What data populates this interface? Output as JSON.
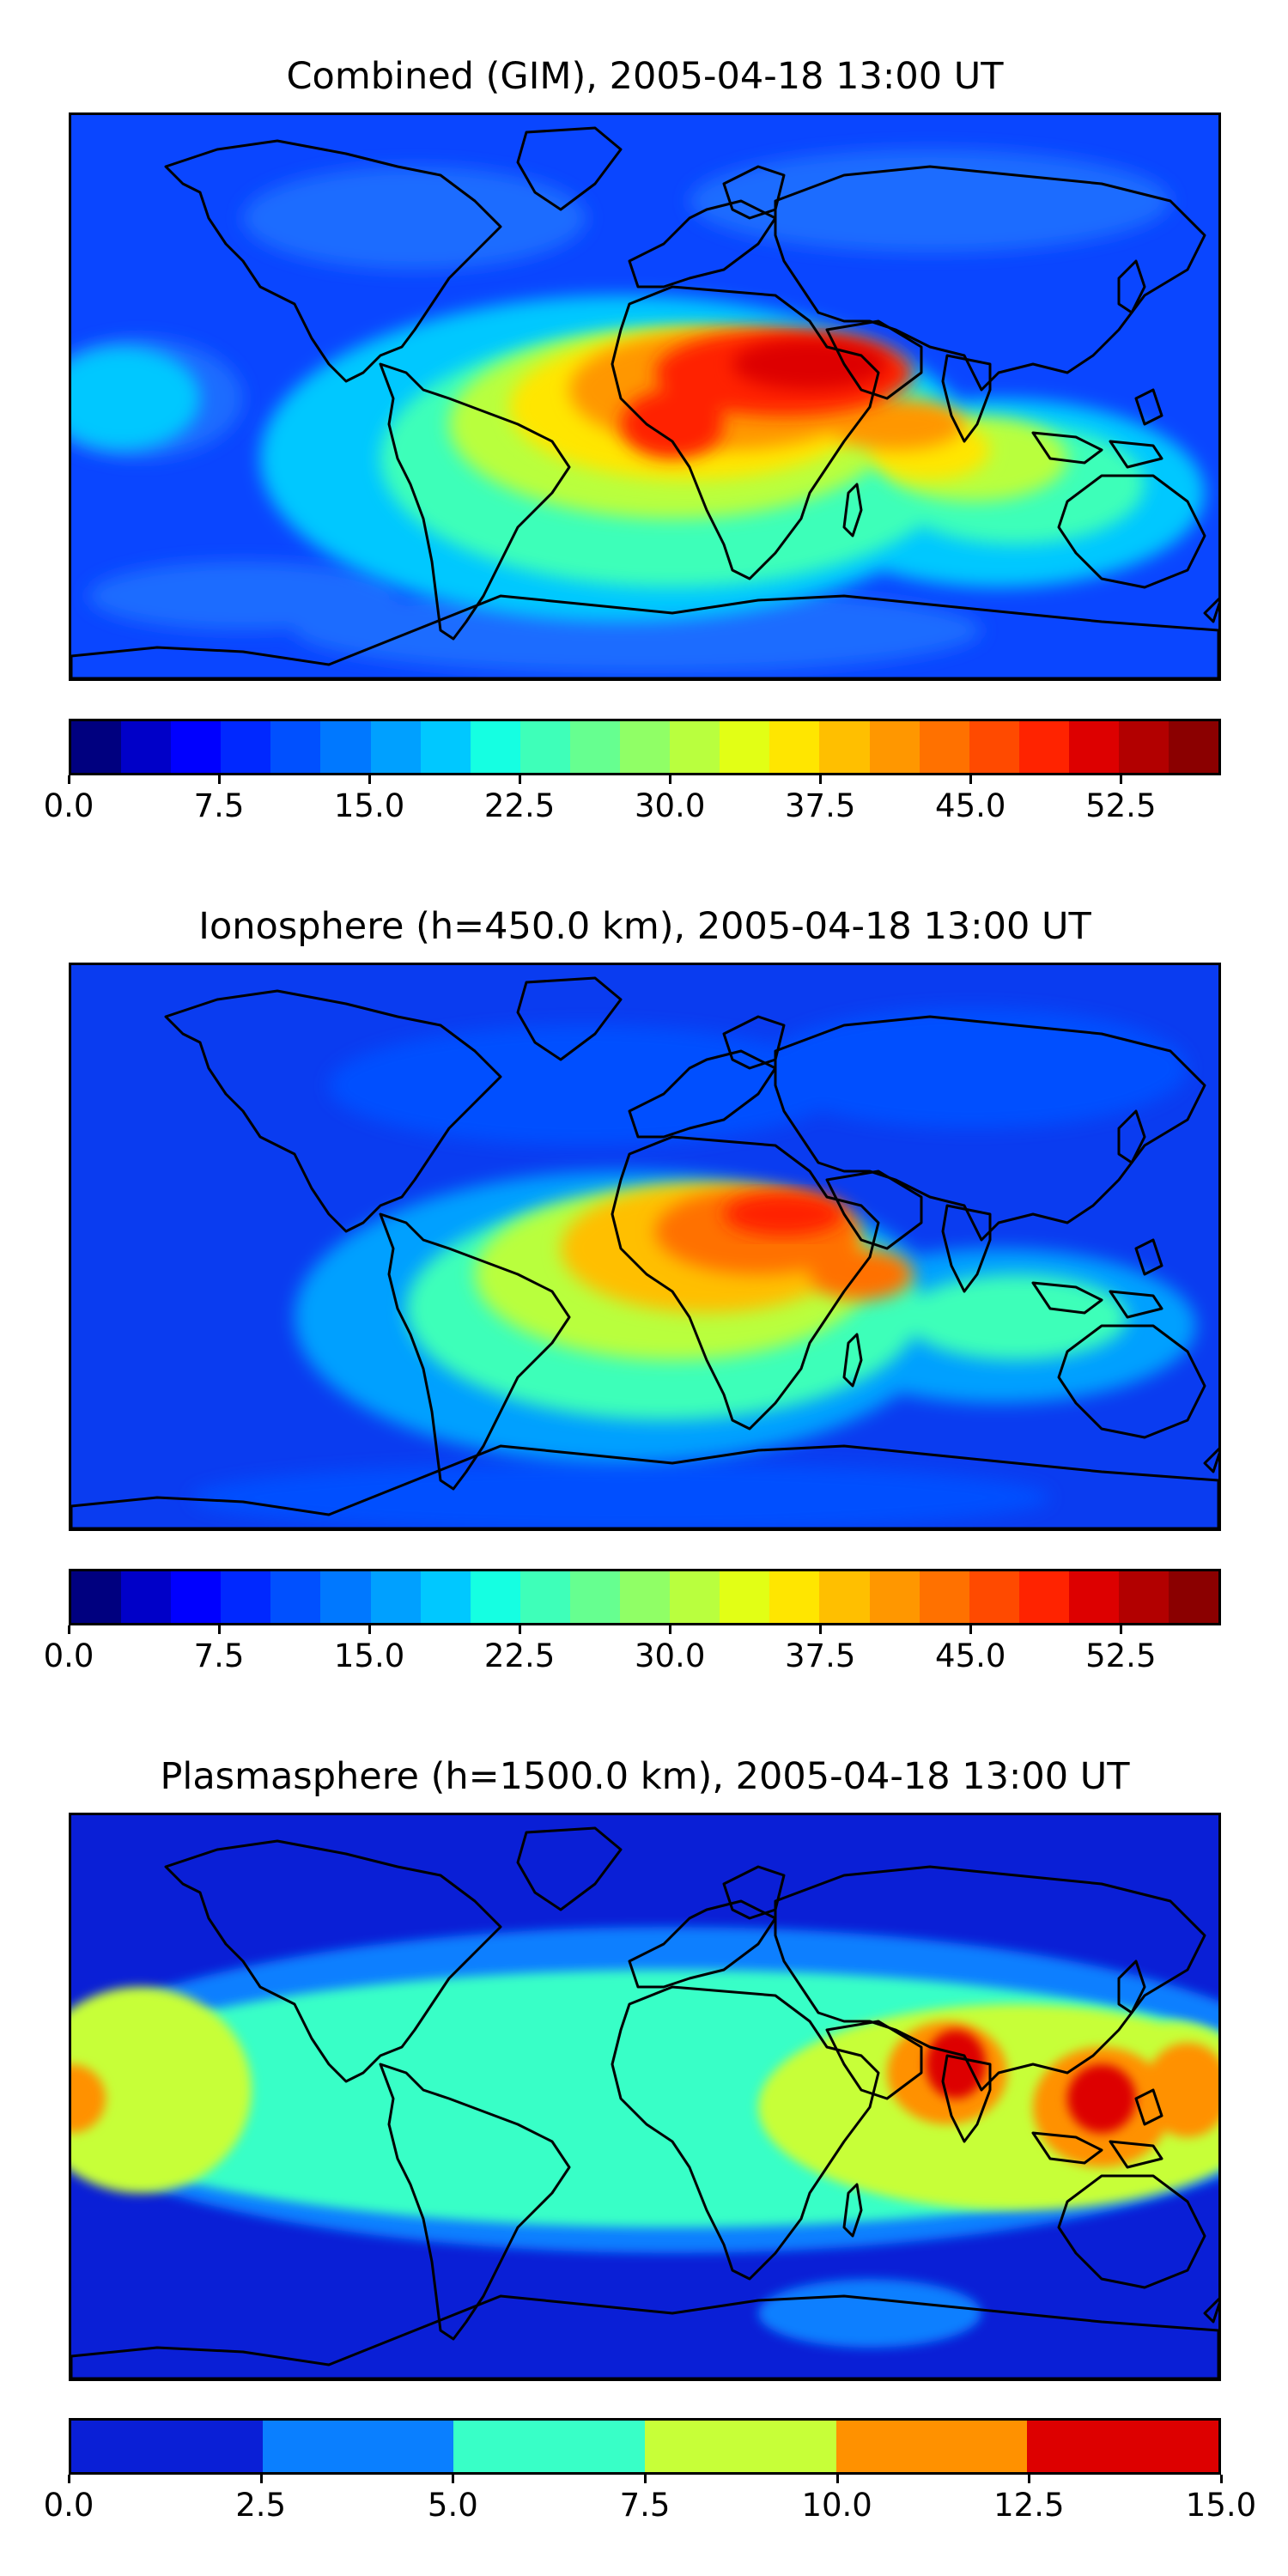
{
  "panels": [
    {
      "title": "Combined (GIM), 2005-04-18 13:00 UT",
      "colorbar": {
        "colors": [
          "#00007f",
          "#0000c8",
          "#0000ff",
          "#0028ff",
          "#0050ff",
          "#0078ff",
          "#00a0ff",
          "#00c8ff",
          "#15ffe2",
          "#3effb9",
          "#66ff90",
          "#90ff66",
          "#b9ff3e",
          "#e2ff15",
          "#ffe600",
          "#ffbf00",
          "#ff9700",
          "#ff7100",
          "#ff4a00",
          "#ff2300",
          "#dd0000",
          "#b20000",
          "#8b0000"
        ],
        "tick_labels": [
          "0.0",
          "7.5",
          "15.0",
          "22.5",
          "30.0",
          "37.5",
          "45.0",
          "52.5"
        ]
      },
      "field": {
        "background": "#0a46ff",
        "blobs": [
          {
            "color": "#1d6cff",
            "level": "low"
          },
          {
            "color": "#00c8ff",
            "level": "mid"
          },
          {
            "color": "#3effb9",
            "level": "mid-high"
          },
          {
            "color": "#b9ff3e",
            "level": "high"
          },
          {
            "color": "#ffe600",
            "level": "higher"
          },
          {
            "color": "#ff9700",
            "level": "peak-edge"
          },
          {
            "color": "#ff2300",
            "level": "peak"
          },
          {
            "color": "#dd0000",
            "level": "max"
          }
        ]
      }
    },
    {
      "title": "Ionosphere  (h=450.0 km), 2005-04-18 13:00 UT",
      "colorbar": {
        "colors": [
          "#00007f",
          "#0000c8",
          "#0000ff",
          "#0028ff",
          "#0050ff",
          "#0078ff",
          "#00a0ff",
          "#00c8ff",
          "#15ffe2",
          "#3effb9",
          "#66ff90",
          "#90ff66",
          "#b9ff3e",
          "#e2ff15",
          "#ffe600",
          "#ffbf00",
          "#ff9700",
          "#ff7100",
          "#ff4a00",
          "#ff2300",
          "#dd0000",
          "#b20000",
          "#8b0000"
        ],
        "tick_labels": [
          "0.0",
          "7.5",
          "15.0",
          "22.5",
          "30.0",
          "37.5",
          "45.0",
          "52.5"
        ]
      },
      "field": {
        "background": "#0a3cf0",
        "blobs": [
          {
            "color": "#0050ff",
            "level": "low"
          },
          {
            "color": "#00a0ff",
            "level": "mid"
          },
          {
            "color": "#3effb9",
            "level": "mid-high"
          },
          {
            "color": "#b9ff3e",
            "level": "high"
          },
          {
            "color": "#ffbf00",
            "level": "higher"
          },
          {
            "color": "#ff7100",
            "level": "peak-edge"
          },
          {
            "color": "#ff2300",
            "level": "peak"
          }
        ]
      }
    },
    {
      "title": "Plasmasphere (h=1500.0 km), 2005-04-18 13:00 UT",
      "colorbar": {
        "colors": [
          "#0a1fd6",
          "#0a7fff",
          "#38ffc7",
          "#c7ff38",
          "#ff9100",
          "#dd0000"
        ],
        "tick_labels": [
          "0.0",
          "2.5",
          "5.0",
          "7.5",
          "10.0",
          "12.5",
          "15.0"
        ]
      },
      "field": {
        "background": "#0a1fd6",
        "blobs": [
          {
            "color": "#0a7fff",
            "level": "2.5-5.0"
          },
          {
            "color": "#38ffc7",
            "level": "5.0-7.5"
          },
          {
            "color": "#c7ff38",
            "level": "7.5-10.0"
          },
          {
            "color": "#ff9100",
            "level": "10.0-12.5"
          },
          {
            "color": "#dd0000",
            "level": "12.5-15.0"
          }
        ]
      }
    }
  ]
}
